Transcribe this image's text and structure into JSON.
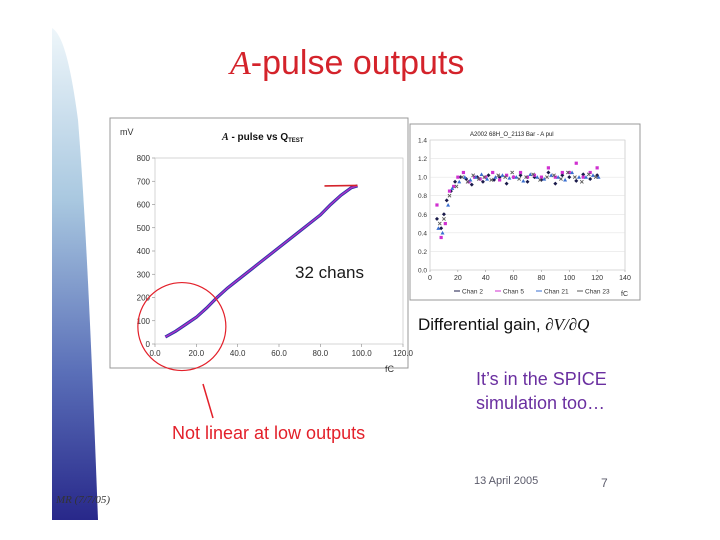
{
  "slide": {
    "title_symbol": "A",
    "title_text": "-pulse outputs",
    "chans_label": "32 chans",
    "diff_label": "Differential gain, ",
    "diff_math": "∂V/∂Q",
    "spice_line1": "It’s in the SPICE",
    "spice_line2": "simulation too…",
    "nonlinear_label": "Not linear at low outputs",
    "date": "13 April 2005",
    "page_number": "7",
    "footer": "MR (7/7/05)",
    "colors": {
      "accent": "#d4232b",
      "spice_text": "#6a2fa0",
      "sidebar_dark": "#2a2a80",
      "sidebar_light": "#dfeef5"
    }
  },
  "chart_data": [
    {
      "type": "line",
      "title_prefix": "A",
      "title_main": " - pulse vs Q",
      "title_sub": "TEST",
      "ylabel": "mV",
      "xlabel": "fC",
      "xlim": [
        0,
        120
      ],
      "ylim": [
        0,
        800
      ],
      "xticks": [
        "0.0",
        "20.0",
        "40.0",
        "60.0",
        "80.0",
        "100.0",
        "120.0"
      ],
      "yticks": [
        "0",
        "100",
        "200",
        "300",
        "400",
        "500",
        "600",
        "700",
        "800"
      ],
      "x": [
        5,
        10,
        15,
        20,
        25,
        30,
        35,
        40,
        50,
        60,
        70,
        80,
        85,
        90,
        95,
        98
      ],
      "y": [
        30,
        55,
        85,
        115,
        155,
        200,
        240,
        275,
        345,
        415,
        485,
        555,
        600,
        640,
        672,
        680
      ],
      "plateau_x": [
        82,
        98
      ],
      "plateau_y": [
        680,
        682
      ],
      "highlight_circle_center": [
        13,
        75
      ]
    },
    {
      "type": "scatter",
      "title": "A2002 68H_O_2113 Bar - A pul",
      "xlabel": "fC",
      "xlim": [
        0,
        140
      ],
      "ylim": [
        0,
        1.4
      ],
      "xticks": [
        "0",
        "20",
        "40",
        "60",
        "80",
        "100",
        "120",
        "140"
      ],
      "yticks": [
        "0.0",
        "0.2",
        "0.4",
        "0.6",
        "0.8",
        "1.0",
        "1.2",
        "1.4"
      ],
      "legend_position": "bottom",
      "series": [
        {
          "name": "Chan 2",
          "color": "#1a1a4a",
          "marker": "diamond",
          "x": [
            5,
            8,
            10,
            12,
            15,
            18,
            22,
            26,
            30,
            34,
            38,
            42,
            46,
            50,
            55,
            60,
            65,
            70,
            75,
            80,
            85,
            90,
            95,
            100,
            105,
            110,
            115,
            120
          ],
          "y": [
            0.55,
            0.45,
            0.6,
            0.75,
            0.85,
            0.95,
            1.0,
            0.98,
            0.92,
            1.0,
            0.95,
            1.02,
            0.97,
            1.0,
            0.93,
            1.0,
            1.02,
            0.95,
            1.0,
            0.97,
            1.05,
            0.93,
            1.02,
            1.0,
            0.96,
            1.03,
            0.98,
            1.02
          ]
        },
        {
          "name": "Chan 5",
          "color": "#d030d0",
          "marker": "square",
          "x": [
            5,
            8,
            11,
            14,
            17,
            20,
            24,
            28,
            32,
            36,
            40,
            45,
            50,
            55,
            60,
            65,
            70,
            75,
            80,
            85,
            90,
            95,
            100,
            105,
            110,
            115,
            120
          ],
          "y": [
            0.7,
            0.35,
            0.5,
            0.85,
            0.9,
            1.0,
            1.05,
            0.95,
            1.0,
            0.98,
            1.0,
            1.05,
            0.97,
            1.02,
            1.0,
            1.05,
            1.0,
            1.02,
            1.0,
            1.1,
            1.0,
            1.05,
            1.05,
            1.15,
            1.0,
            1.05,
            1.1
          ]
        },
        {
          "name": "Chan 21",
          "color": "#3a6fd0",
          "marker": "triangle",
          "x": [
            6,
            9,
            13,
            16,
            21,
            25,
            29,
            33,
            37,
            41,
            47,
            52,
            57,
            62,
            67,
            72,
            77,
            82,
            87,
            92,
            97,
            102,
            107,
            112,
            117,
            121
          ],
          "y": [
            0.45,
            0.4,
            0.7,
            0.88,
            0.95,
            1.0,
            0.97,
            1.0,
            1.03,
            0.98,
            1.0,
            1.02,
            0.99,
            1.0,
            0.96,
            1.03,
            1.0,
            0.98,
            1.02,
            1.0,
            0.97,
            1.05,
            1.0,
            1.0,
            1.02,
            1.0
          ]
        },
        {
          "name": "Chan 23",
          "color": "#5a5a5a",
          "marker": "x",
          "x": [
            7,
            10,
            14,
            19,
            23,
            27,
            31,
            35,
            39,
            44,
            49,
            54,
            59,
            64,
            69,
            74,
            79,
            84,
            89,
            94,
            99,
            104,
            109,
            114,
            119
          ],
          "y": [
            0.5,
            0.55,
            0.8,
            0.9,
            1.0,
            0.95,
            1.02,
            0.98,
            1.0,
            0.97,
            1.02,
            1.0,
            1.05,
            0.98,
            1.0,
            1.03,
            0.97,
            1.0,
            1.02,
            0.98,
            1.05,
            1.0,
            0.95,
            1.03,
            1.0
          ]
        }
      ]
    }
  ]
}
